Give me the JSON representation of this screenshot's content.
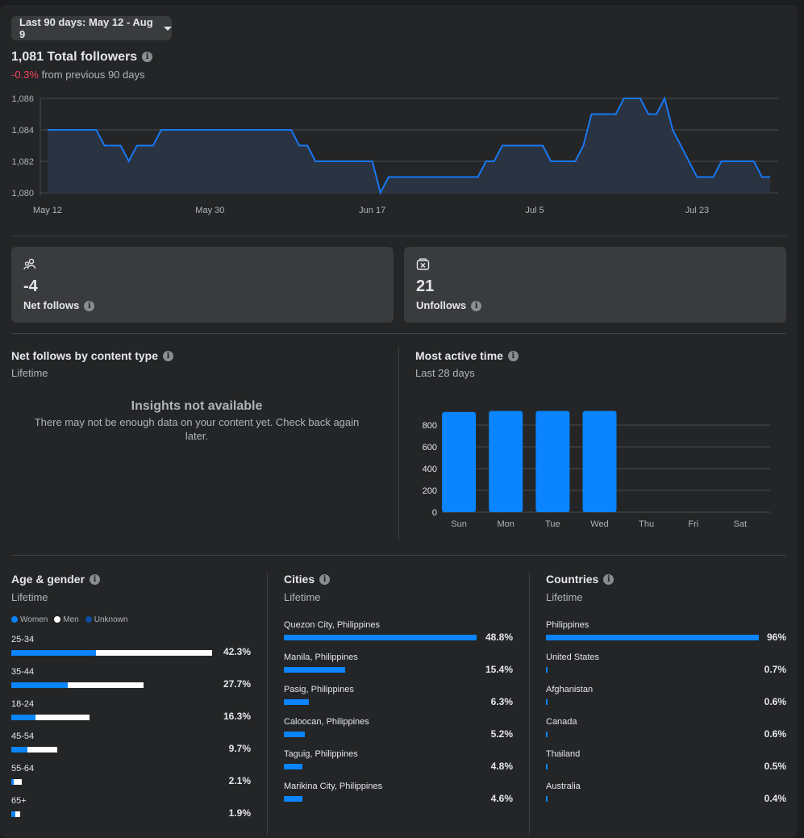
{
  "date_range": {
    "label": "Last 90 days: May 12 - Aug 9"
  },
  "followers": {
    "total_label": "1,081 Total followers",
    "change": "-0.3%",
    "change_suffix": "from previous 90 days"
  },
  "chart_data": [
    {
      "type": "area",
      "y_ticks": [
        "1,086",
        "1,084",
        "1,082",
        "1,080"
      ],
      "ylim": [
        1080,
        1086
      ],
      "x_ticks": [
        "May 12",
        "May 30",
        "Jun 17",
        "Jul 5",
        "Jul 23"
      ],
      "x_tick_index": [
        0,
        20,
        40,
        60,
        80
      ],
      "series": [
        {
          "values": [
            1084,
            1084,
            1084,
            1084,
            1084,
            1084,
            1084,
            1083,
            1083,
            1083,
            1082,
            1083,
            1083,
            1083,
            1084,
            1084,
            1084,
            1084,
            1084,
            1084,
            1084,
            1084,
            1084,
            1084,
            1084,
            1084,
            1084,
            1084,
            1084,
            1084,
            1084,
            1083,
            1083,
            1082,
            1082,
            1082,
            1082,
            1082,
            1082,
            1082,
            1082,
            1080,
            1081,
            1081,
            1081,
            1081,
            1081,
            1081,
            1081,
            1081,
            1081,
            1081,
            1081,
            1081,
            1082,
            1082,
            1083,
            1083,
            1083,
            1083,
            1083,
            1083,
            1082,
            1082,
            1082,
            1082,
            1083,
            1085,
            1085,
            1085,
            1085,
            1086,
            1086,
            1086,
            1085,
            1085,
            1086,
            1084,
            1083,
            1082,
            1081,
            1081,
            1081,
            1082,
            1082,
            1082,
            1082,
            1082,
            1081,
            1081
          ]
        }
      ],
      "color": "#1877f2",
      "grid": true
    },
    {
      "type": "bar",
      "categories": [
        "Sun",
        "Mon",
        "Tue",
        "Wed",
        "Thu",
        "Fri",
        "Sat"
      ],
      "values": [
        920,
        930,
        930,
        930,
        0,
        0,
        0
      ],
      "y_ticks": [
        "800",
        "600",
        "400",
        "200",
        "0"
      ],
      "ylim": [
        0,
        1000
      ],
      "color": "#0a84ff",
      "grid": true
    }
  ],
  "cards": [
    {
      "icon": "people-icon",
      "value": "-4",
      "label": "Net follows"
    },
    {
      "icon": "unfollow-icon",
      "value": "21",
      "label": "Unfollows"
    }
  ],
  "net_follows_content": {
    "title": "Net follows by content type",
    "period": "Lifetime",
    "empty_title": "Insights not available",
    "empty_text": "There may not be enough data on your content yet. Check back again later."
  },
  "most_active": {
    "title": "Most active time",
    "period": "Last 28 days"
  },
  "age_gender": {
    "title": "Age & gender",
    "period": "Lifetime",
    "legend": [
      {
        "label": "Women",
        "color": "#0a84ff"
      },
      {
        "label": "Men",
        "color": "#ffffff"
      },
      {
        "label": "Unknown",
        "color": "#0b4ea2"
      }
    ],
    "rows": [
      {
        "label": "25-34",
        "value": "42.3%",
        "women": 0.42,
        "men": 1.0
      },
      {
        "label": "35-44",
        "value": "27.7%",
        "women": 0.28,
        "men": 0.66
      },
      {
        "label": "18-24",
        "value": "16.3%",
        "women": 0.12,
        "men": 0.39
      },
      {
        "label": "45-54",
        "value": "9.7%",
        "women": 0.08,
        "men": 0.23
      },
      {
        "label": "55-64",
        "value": "2.1%",
        "women": 0.01,
        "men": 0.05
      },
      {
        "label": "65+",
        "value": "1.9%",
        "women": 0.02,
        "men": 0.045
      }
    ]
  },
  "cities": {
    "title": "Cities",
    "period": "Lifetime",
    "rows": [
      {
        "label": "Quezon City, Philippines",
        "value": "48.8%",
        "fraction": 1.0
      },
      {
        "label": "Manila, Philippines",
        "value": "15.4%",
        "fraction": 0.316
      },
      {
        "label": "Pasig, Philippines",
        "value": "6.3%",
        "fraction": 0.129
      },
      {
        "label": "Caloocan, Philippines",
        "value": "5.2%",
        "fraction": 0.107
      },
      {
        "label": "Taguig, Philippines",
        "value": "4.8%",
        "fraction": 0.098
      },
      {
        "label": "Marikina City, Philippines",
        "value": "4.6%",
        "fraction": 0.094
      }
    ]
  },
  "countries": {
    "title": "Countries",
    "period": "Lifetime",
    "rows": [
      {
        "label": "Philippines",
        "value": "96%",
        "fraction": 1.0
      },
      {
        "label": "United States",
        "value": "0.7%",
        "fraction": 0.007
      },
      {
        "label": "Afghanistan",
        "value": "0.6%",
        "fraction": 0.006
      },
      {
        "label": "Canada",
        "value": "0.6%",
        "fraction": 0.006
      },
      {
        "label": "Thailand",
        "value": "0.5%",
        "fraction": 0.005
      },
      {
        "label": "Australia",
        "value": "0.4%",
        "fraction": 0.004
      }
    ]
  }
}
